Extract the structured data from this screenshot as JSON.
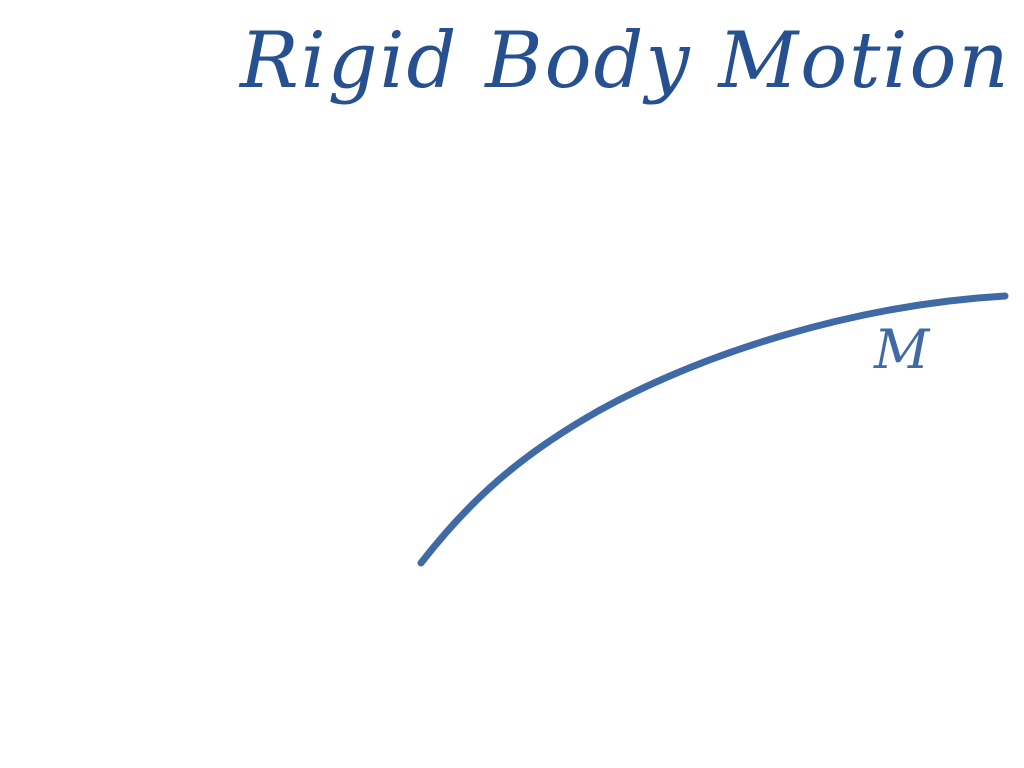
{
  "title": "Rigid Body Motion",
  "curve_label": "M",
  "colors": {
    "title_ink": "#26508f",
    "curve_ink": "#3f6aa6",
    "label_ink": "#3f6aa6",
    "background": "#ffffff"
  }
}
